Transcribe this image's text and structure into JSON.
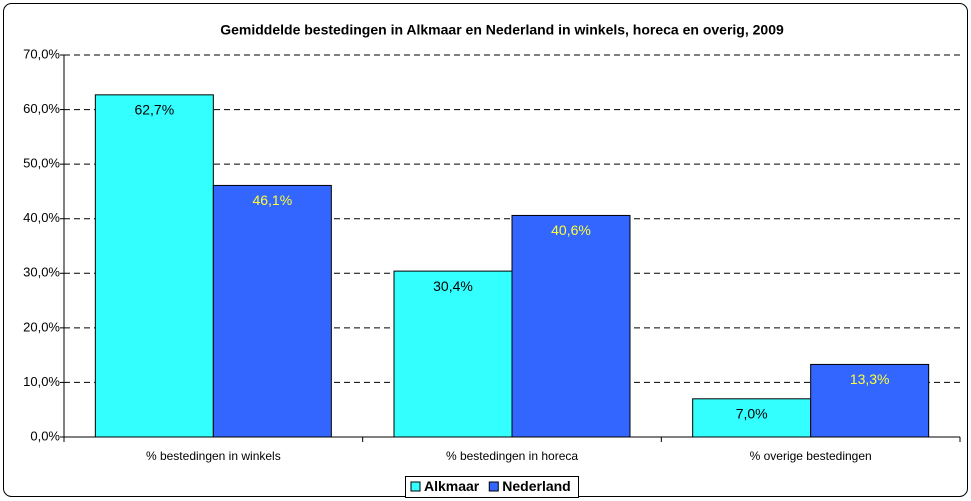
{
  "chart_data": {
    "type": "bar",
    "title": "Gemiddelde bestedingen in Alkmaar en Nederland in winkels, horeca en overig, 2009",
    "categories": [
      "% bestedingen in winkels",
      "% bestedingen in horeca",
      "% overige bestedingen"
    ],
    "series": [
      {
        "name": "Alkmaar",
        "color": "#33ffff",
        "label_color": "#000000",
        "values": [
          62.7,
          30.4,
          7.0
        ],
        "value_labels": [
          "62,7%",
          "30,4%",
          "7,0%"
        ]
      },
      {
        "name": "Nederland",
        "color": "#3366ff",
        "label_color": "#ffff33",
        "values": [
          46.1,
          40.6,
          13.3
        ],
        "value_labels": [
          "46,1%",
          "40,6%",
          "13,3%"
        ]
      }
    ],
    "ylim": [
      0,
      70
    ],
    "yticks": [
      {
        "value": 0,
        "label": "0,0%"
      },
      {
        "value": 10,
        "label": "10,0%"
      },
      {
        "value": 20,
        "label": "20,0%"
      },
      {
        "value": 30,
        "label": "30,0%"
      },
      {
        "value": 40,
        "label": "40,0%"
      },
      {
        "value": 50,
        "label": "50,0%"
      },
      {
        "value": 60,
        "label": "60,0%"
      },
      {
        "value": 70,
        "label": "70,0%"
      }
    ],
    "grid": true,
    "legend": "bottom"
  }
}
